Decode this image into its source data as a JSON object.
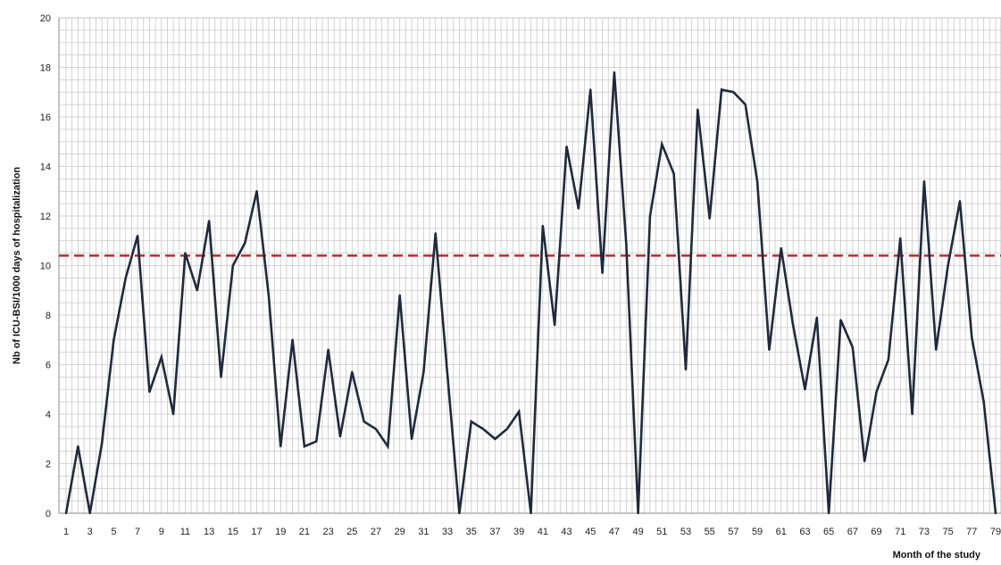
{
  "chart_data": {
    "type": "line",
    "title": "",
    "xlabel": "Month of the study",
    "ylabel": "Nb of ICU-BSI/1000 days of hospitalization",
    "xlim": [
      1,
      79
    ],
    "ylim": [
      0,
      20
    ],
    "y_ticks": [
      0,
      2,
      4,
      6,
      8,
      10,
      12,
      14,
      16,
      18,
      20
    ],
    "x_ticks": [
      1,
      3,
      5,
      7,
      9,
      11,
      13,
      15,
      17,
      19,
      21,
      23,
      25,
      27,
      29,
      31,
      33,
      35,
      37,
      39,
      41,
      43,
      45,
      47,
      49,
      51,
      53,
      55,
      57,
      59,
      61,
      63,
      65,
      67,
      69,
      71,
      73,
      75,
      77,
      79
    ],
    "grid": true,
    "minor_grid": true,
    "x": [
      1,
      2,
      3,
      4,
      5,
      6,
      7,
      8,
      9,
      10,
      11,
      12,
      13,
      14,
      15,
      16,
      17,
      18,
      19,
      20,
      21,
      22,
      23,
      24,
      25,
      26,
      27,
      28,
      29,
      30,
      31,
      32,
      33,
      34,
      35,
      36,
      37,
      38,
      39,
      40,
      41,
      42,
      43,
      44,
      45,
      46,
      47,
      48,
      49,
      50,
      51,
      52,
      53,
      54,
      55,
      56,
      57,
      58,
      59,
      60,
      61,
      62,
      63,
      64,
      65,
      66,
      67,
      68,
      69,
      70,
      71,
      72,
      73,
      74,
      75,
      76,
      77,
      78,
      79
    ],
    "series": [
      {
        "color": "#1f2a3c",
        "values": [
          0,
          2.7,
          0,
          2.8,
          7,
          9.5,
          11.2,
          4.9,
          6.3,
          4.0,
          10.5,
          9.0,
          11.8,
          5.5,
          10.0,
          10.9,
          13.0,
          8.8,
          2.7,
          7.0,
          2.7,
          2.9,
          6.6,
          3.1,
          5.7,
          3.7,
          3.4,
          2.7,
          8.8,
          3.0,
          5.7,
          11.3,
          5.6,
          0,
          3.7,
          3.4,
          3.0,
          3.4,
          4.1,
          0,
          11.6,
          7.6,
          14.8,
          12.3,
          17.1,
          9.7,
          17.8,
          10.9,
          0,
          12.0,
          14.9,
          13.7,
          5.8,
          16.3,
          11.9,
          17.1,
          17.0,
          16.5,
          13.4,
          6.6,
          10.7,
          7.6,
          5.0,
          7.9,
          0,
          7.8,
          6.7,
          2.1,
          4.9,
          6.2,
          11.1,
          4.0,
          13.4,
          6.6,
          10.0,
          12.6,
          7.1,
          4.5,
          0
        ]
      }
    ],
    "reference_line": {
      "y": 10.4,
      "color": "#c0282d",
      "style": "dashed"
    }
  }
}
